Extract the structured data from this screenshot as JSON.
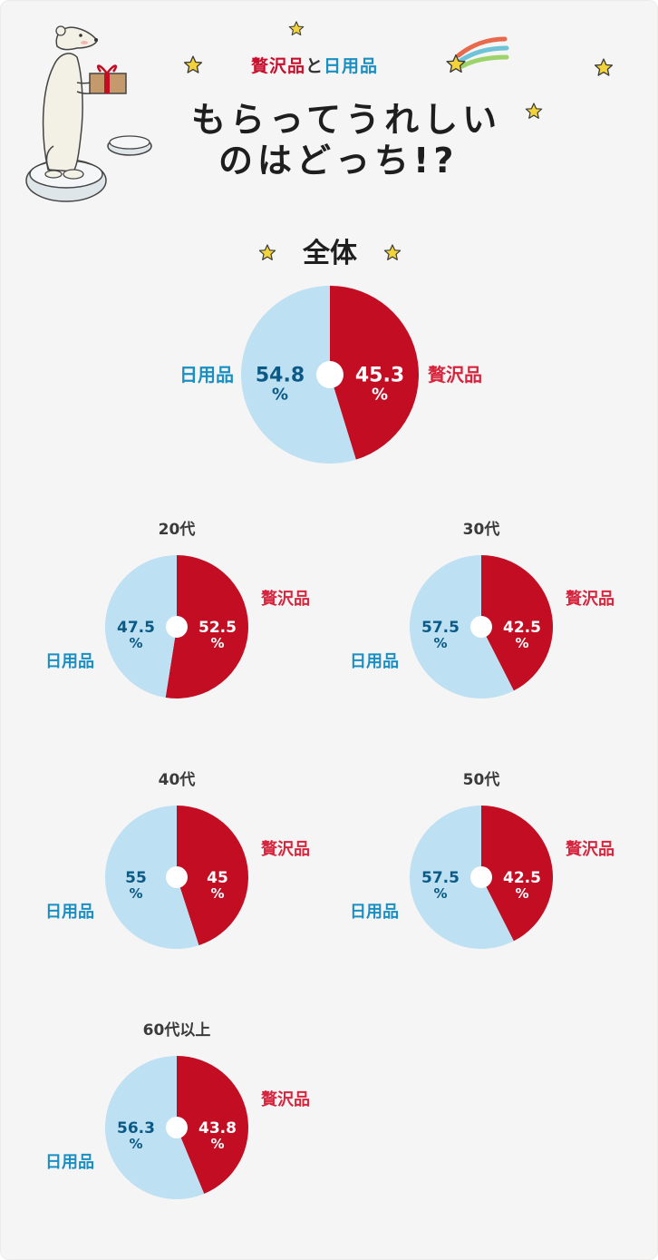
{
  "header": {
    "subtitle_luxury": "贅沢品",
    "subtitle_and": "と",
    "subtitle_daily": "日用品",
    "title_line1": "もらってうれしい",
    "title_line2": "のはどっち!?"
  },
  "colors": {
    "luxury": "#c30d23",
    "daily": "#bde0f3",
    "luxury_text": "#d6253d",
    "daily_text": "#1a8fc2",
    "daily_value_text": "#0b5a86",
    "background": "#f6f5f5",
    "star": "#f2d43a"
  },
  "icons": [
    "polar-bear-illustration",
    "gift-box-icon",
    "star-icon",
    "shooting-star-icon"
  ],
  "chart_data": [
    {
      "type": "pie",
      "title": "全体",
      "categories": [
        "贅沢品",
        "日用品"
      ],
      "values": [
        45.3,
        54.8
      ],
      "value_labels": [
        "45.3",
        "54.8"
      ],
      "unit": "%"
    },
    {
      "type": "pie",
      "title": "20代",
      "categories": [
        "贅沢品",
        "日用品"
      ],
      "values": [
        52.5,
        47.5
      ],
      "value_labels": [
        "52.5",
        "47.5"
      ],
      "unit": "%"
    },
    {
      "type": "pie",
      "title": "30代",
      "categories": [
        "贅沢品",
        "日用品"
      ],
      "values": [
        42.5,
        57.5
      ],
      "value_labels": [
        "42.5",
        "57.5"
      ],
      "unit": "%"
    },
    {
      "type": "pie",
      "title": "40代",
      "categories": [
        "贅沢品",
        "日用品"
      ],
      "values": [
        45,
        55
      ],
      "value_labels": [
        "45",
        "55"
      ],
      "unit": "%"
    },
    {
      "type": "pie",
      "title": "50代",
      "categories": [
        "贅沢品",
        "日用品"
      ],
      "values": [
        42.5,
        57.5
      ],
      "value_labels": [
        "42.5",
        "57.5"
      ],
      "unit": "%"
    },
    {
      "type": "pie",
      "title": "60代以上",
      "categories": [
        "贅沢品",
        "日用品"
      ],
      "values": [
        43.8,
        56.3
      ],
      "value_labels": [
        "43.8",
        "56.3"
      ],
      "unit": "%"
    }
  ]
}
